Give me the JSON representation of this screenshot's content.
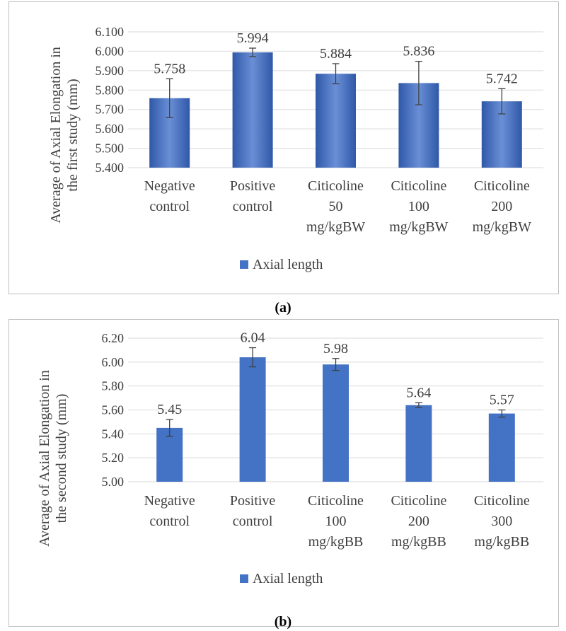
{
  "chart_data": [
    {
      "id": "a",
      "type": "bar",
      "categories": [
        [
          "Negative",
          "control"
        ],
        [
          "Positive",
          "control"
        ],
        [
          "Citicoline",
          "50",
          "mg/kgBW"
        ],
        [
          "Citicoline",
          "100",
          "mg/kgBW"
        ],
        [
          "Citicoline",
          "200",
          "mg/kgBW"
        ]
      ],
      "series": [
        {
          "name": "Axial length",
          "values": [
            5.758,
            5.994,
            5.884,
            5.836,
            5.742
          ],
          "error": [
            0.1,
            0.022,
            0.052,
            0.112,
            0.065
          ]
        }
      ],
      "data_labels": [
        "5.758",
        "5.994",
        "5.884",
        "5.836",
        "5.742"
      ],
      "ylabel": [
        "Average of Axial Elongation in",
        "the first study (mm)"
      ],
      "ylim": [
        5.4,
        6.1
      ],
      "yticks": [
        "5.400",
        "5.500",
        "5.600",
        "5.700",
        "5.800",
        "5.900",
        "6.000",
        "6.100"
      ],
      "grid": true,
      "legend_position": "bottom",
      "bar_style": "gradient",
      "colors": {
        "bar": "#4472c4",
        "bar_light": "#6a8fd6",
        "bar_dark": "#2f58a8",
        "grid": "#d9d9d9"
      },
      "caption": "(a)"
    },
    {
      "id": "b",
      "type": "bar",
      "categories": [
        [
          "Negative",
          "control"
        ],
        [
          "Positive",
          "control"
        ],
        [
          "Citicoline",
          "100",
          "mg/kgBB"
        ],
        [
          "Citicoline",
          "200",
          "mg/kgBB"
        ],
        [
          "Citicoline",
          "300",
          "mg/kgBB"
        ]
      ],
      "series": [
        {
          "name": "Axial length",
          "values": [
            5.45,
            6.04,
            5.98,
            5.64,
            5.57
          ],
          "error": [
            0.07,
            0.08,
            0.05,
            0.02,
            0.03
          ]
        }
      ],
      "data_labels": [
        "5.45",
        "6.04",
        "5.98",
        "5.64",
        "5.57"
      ],
      "ylabel": [
        "Average of Axial Elongation in",
        "the second study (mm)"
      ],
      "ylim": [
        5.0,
        6.2
      ],
      "yticks": [
        "5.00",
        "5.20",
        "5.40",
        "5.60",
        "5.80",
        "6.00",
        "6.20"
      ],
      "grid": true,
      "legend_position": "bottom",
      "bar_style": "solid",
      "colors": {
        "bar": "#4472c4",
        "grid": "#d9d9d9"
      },
      "caption": "(b)"
    }
  ]
}
